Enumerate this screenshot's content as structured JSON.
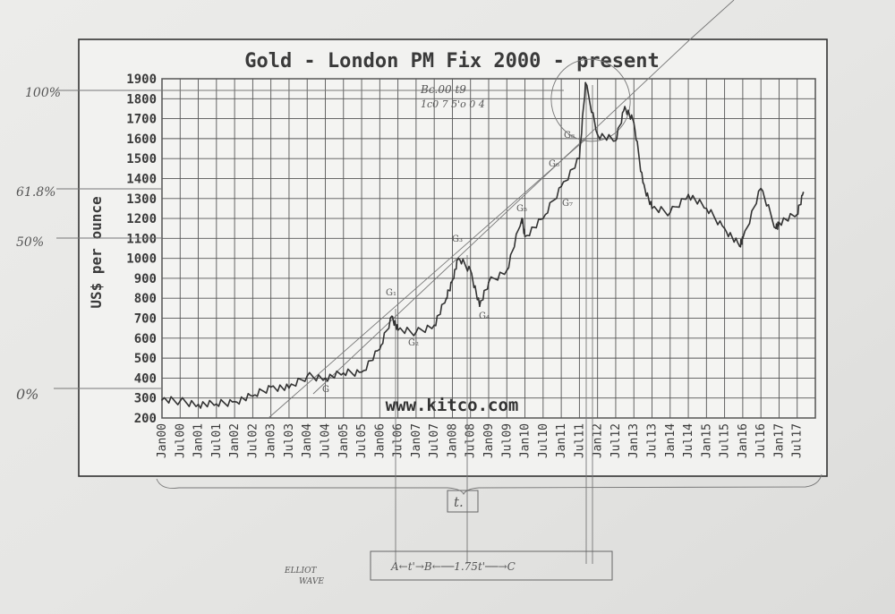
{
  "chart_data": {
    "type": "line",
    "title": "Gold - London PM Fix 2000 - present",
    "ylabel": "US$ per ounce",
    "xlabel": "",
    "ylim": [
      200,
      1900
    ],
    "yticks": [
      200,
      300,
      400,
      500,
      600,
      700,
      800,
      900,
      1000,
      1100,
      1200,
      1300,
      1400,
      1500,
      1600,
      1700,
      1800,
      1900
    ],
    "xticks": [
      "Jan00",
      "Jul00",
      "Jan01",
      "Jul01",
      "Jan02",
      "Jul02",
      "Jan03",
      "Jul03",
      "Jan04",
      "Jul04",
      "Jan05",
      "Jul05",
      "Jan06",
      "Jul06",
      "Jan07",
      "Jul07",
      "Jan08",
      "Jul08",
      "Jan09",
      "Jul09",
      "Jan10",
      "Jul10",
      "Jan11",
      "Jul11",
      "Jan12",
      "Jul12",
      "Jan13",
      "Jul13",
      "Jan14",
      "Jul14",
      "Jan15",
      "Jul15",
      "Jan16",
      "Jul16",
      "Jan17",
      "Jul17"
    ],
    "grid": true,
    "watermark": "www.kitco.com",
    "series": [
      {
        "x": [
          "Jan00",
          "Jul00",
          "Jan01",
          "Jul01",
          "Jan02",
          "Jul02",
          "Jan03",
          "Jul03",
          "Jan04",
          "Jul04",
          "Jan05",
          "Jul05",
          "Jan06",
          "May06",
          "Jul06",
          "Jan07",
          "Jul07",
          "Nov07",
          "Jan08",
          "Mar08",
          "Jul08",
          "Oct08",
          "Jan09",
          "Jul09",
          "Dec09",
          "Jan10",
          "Jul10",
          "Jan11",
          "Jul11",
          "Sep11",
          "Jan12",
          "Jul12",
          "Oct12",
          "Jan13",
          "Apr13",
          "Jul13",
          "Jan14",
          "Jul14",
          "Jan15",
          "Jul15",
          "Dec15",
          "Jan16",
          "Jul16",
          "Dec16",
          "Jan17",
          "Jul17",
          "Sep17"
        ],
        "values": [
          290,
          285,
          268,
          270,
          282,
          310,
          355,
          350,
          410,
          400,
          425,
          430,
          545,
          710,
          640,
          630,
          665,
          800,
          890,
          1000,
          940,
          760,
          880,
          940,
          1200,
          1110,
          1200,
          1360,
          1500,
          1880,
          1620,
          1590,
          1760,
          1680,
          1380,
          1250,
          1230,
          1320,
          1250,
          1150,
          1060,
          1100,
          1350,
          1150,
          1180,
          1220,
          1330
        ]
      }
    ]
  },
  "annotations": {
    "fib_100": "100%",
    "fib_618": "61.8%",
    "fib_50": "50%",
    "fib_0": "0%",
    "peak_note_1": "Bc.00 t9",
    "peak_note_2": "1c0 7 5'o 0 4",
    "wave_labels": [
      "G",
      "G₁",
      "G₂",
      "G₃",
      "G₄",
      "G₅",
      "G₆",
      "G₇",
      "G₈"
    ],
    "t_box": "t.",
    "elliot_1": "ELLIOT",
    "elliot_2": "WAVE",
    "timeline": "A←t'→B←──1.75t'──→C"
  }
}
